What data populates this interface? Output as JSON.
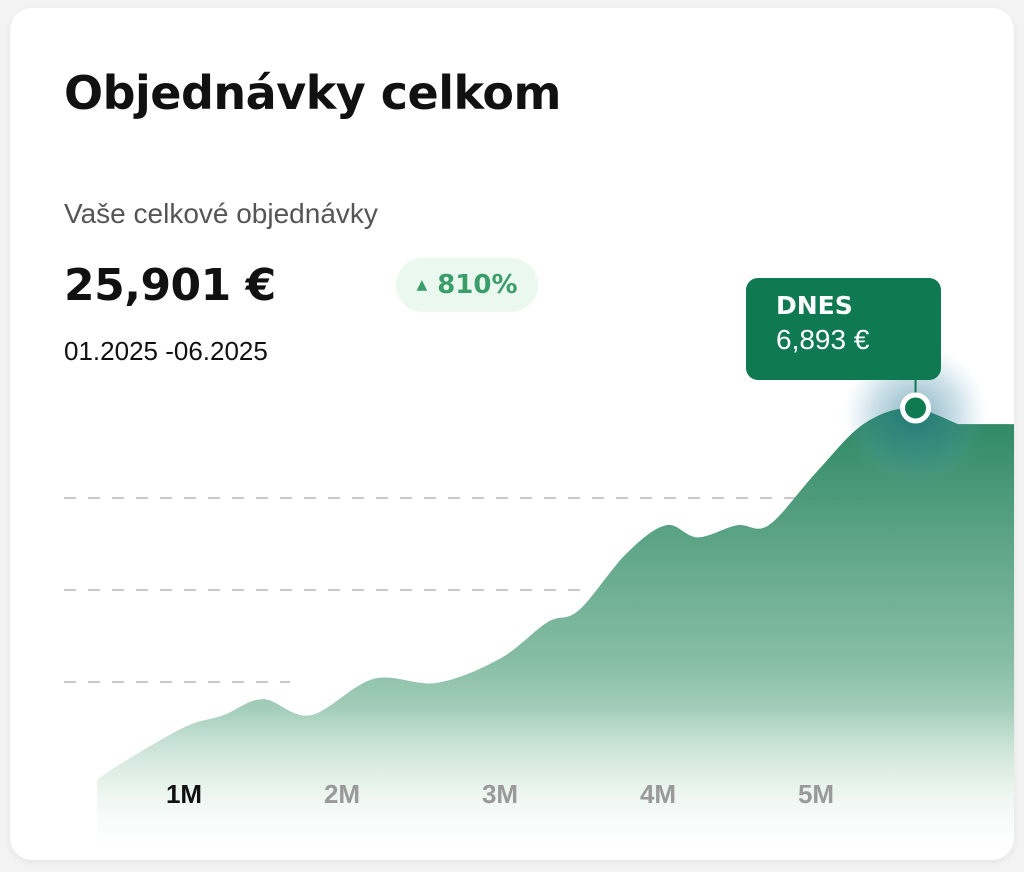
{
  "card": {
    "title": "Objednávky celkom",
    "subtitle": "Vaše celkové objednávky",
    "total": "25,901 €",
    "change_badge": {
      "icon": "triangle-up-icon",
      "value": "810%",
      "color": "#3a9d6a"
    },
    "date_range": "01.2025 -06.2025"
  },
  "tooltip": {
    "label": "DNES",
    "value": "6,893 €",
    "color": "#0f7a52"
  },
  "chart_data": {
    "type": "area",
    "x_ticks": [
      "1M",
      "2M",
      "3M",
      "4M",
      "5M"
    ],
    "active_tick": "1M",
    "x": [
      0.45,
      0.6,
      1.0,
      1.25,
      1.5,
      1.8,
      2.2,
      2.6,
      3.0,
      3.3,
      3.5,
      3.8,
      4.05,
      4.25,
      4.5,
      4.7,
      5.0,
      5.3,
      5.6,
      5.9
    ],
    "y": [
      0.2,
      0.6,
      1.5,
      1.8,
      2.2,
      1.8,
      2.7,
      2.6,
      3.2,
      4.1,
      4.4,
      5.8,
      6.5,
      6.2,
      6.5,
      6.5,
      7.8,
      9.0,
      9.4,
      9.0
    ],
    "highlight": {
      "x": 5.63,
      "y": 9.4
    },
    "color": "#0f7a52"
  }
}
